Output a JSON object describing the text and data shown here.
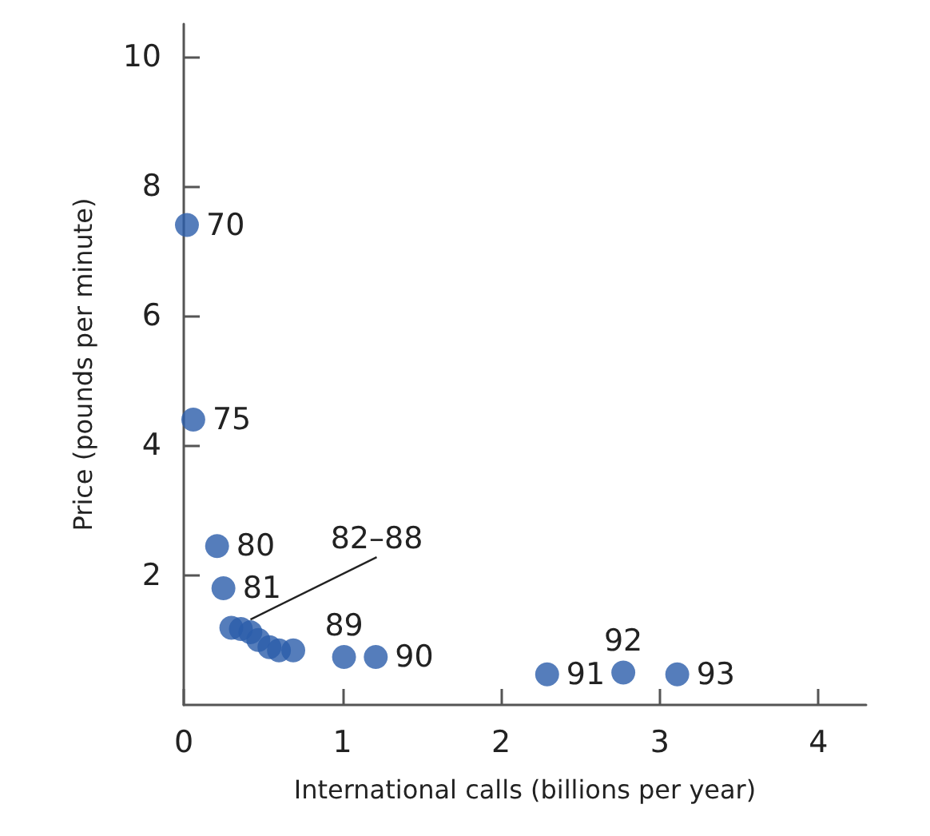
{
  "chart_data": {
    "type": "scatter",
    "xlabel": "International calls (billions per year)",
    "ylabel": "Price (pounds per minute)",
    "x": [
      0.02,
      0.06,
      0.21,
      0.25,
      0.3,
      0.36,
      0.42,
      0.47,
      0.54,
      0.6,
      0.69,
      1.01,
      1.21,
      2.29,
      2.77,
      3.11
    ],
    "series": [
      {
        "color": "#2a5caa",
        "values": [
          7.4,
          4.4,
          2.45,
          1.8,
          1.19,
          1.17,
          1.12,
          1.0,
          0.89,
          0.84,
          0.84,
          0.74,
          0.74,
          0.47,
          0.5,
          0.47
        ]
      }
    ],
    "annotations": [
      {
        "text": "70",
        "x": 0.02,
        "y": 7.4
      },
      {
        "text": "75",
        "x": 0.06,
        "y": 4.4
      },
      {
        "text": "80",
        "x": 0.21,
        "y": 2.45
      },
      {
        "text": "81",
        "x": 0.25,
        "y": 1.8
      },
      {
        "text": "82–88",
        "x": 0.36,
        "y": 1.17
      },
      {
        "text": "89",
        "x": 1.01,
        "y": 0.74
      },
      {
        "text": "90",
        "x": 1.21,
        "y": 0.74
      },
      {
        "text": "91",
        "x": 2.29,
        "y": 0.47
      },
      {
        "text": "92",
        "x": 2.77,
        "y": 0.5
      },
      {
        "text": "93",
        "x": 3.11,
        "y": 0.47
      }
    ],
    "xlim": [
      0,
      4.3
    ],
    "xticks": [
      0,
      1,
      2,
      3,
      4
    ],
    "ylim": [
      0,
      10.5
    ],
    "yticks": [
      2,
      4,
      6,
      8,
      10
    ],
    "marker": "circle"
  }
}
